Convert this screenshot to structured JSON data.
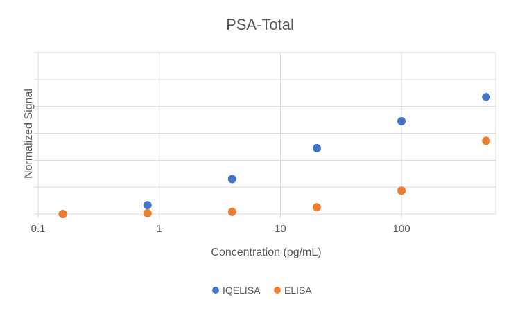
{
  "chart_data": {
    "type": "scatter",
    "title": "PSA-Total",
    "xlabel": "Concentration (pg/mL)",
    "ylabel": "Normalized Signal",
    "x_scale": "log",
    "xlim": [
      0.1,
      600
    ],
    "ylim": [
      0,
      6
    ],
    "y_gridlines": [
      0,
      1,
      2,
      3,
      4,
      5,
      6
    ],
    "x_tick_labels": [
      "0.1",
      "1",
      "10",
      "100"
    ],
    "x_ticks": [
      0.1,
      1,
      10,
      100
    ],
    "grid": true,
    "legend_position": "bottom",
    "series": [
      {
        "name": "IQELISA",
        "color": "#4472C4",
        "x": [
          0.16,
          0.8,
          4,
          20,
          100,
          500
        ],
        "y": [
          0.0,
          0.33,
          1.3,
          2.45,
          3.45,
          4.35
        ]
      },
      {
        "name": "ELISA",
        "color": "#ED7D31",
        "x": [
          0.16,
          0.8,
          4,
          20,
          100,
          500
        ],
        "y": [
          0.0,
          0.03,
          0.08,
          0.25,
          0.87,
          2.72
        ]
      }
    ]
  }
}
